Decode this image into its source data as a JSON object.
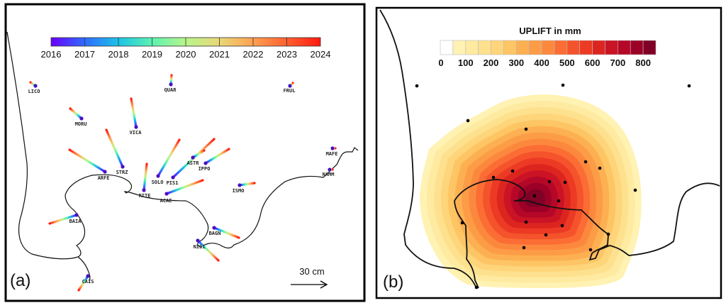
{
  "panel_a": {
    "label": "(a)",
    "colorbar": {
      "ticks": [
        "2016",
        "2017",
        "2018",
        "2019",
        "2020",
        "2021",
        "2022",
        "2023",
        "2024"
      ],
      "colors": [
        "#6a00ff",
        "#2f6bff",
        "#1cc3e6",
        "#5cf2b0",
        "#b8f58a",
        "#e8d878",
        "#ffa050",
        "#ff6030",
        "#ff1a10"
      ]
    },
    "stations": [
      "LICO",
      "QUAR",
      "FRUL",
      "MORU",
      "VICA",
      "STRZ",
      "ARFE",
      "SOLO",
      "PIS1",
      "ASTR",
      "IPPO",
      "RITE",
      "ACAE",
      "ISMO",
      "MAFE",
      "NAMM",
      "BAIA",
      "BAGN",
      "NISI",
      "CAIS"
    ],
    "scale_label": "30 cm"
  },
  "panel_b": {
    "label": "(b)",
    "colorbar": {
      "title": "UPLIFT in mm",
      "ticks": [
        "0",
        "100",
        "200",
        "300",
        "400",
        "500",
        "600",
        "700",
        "800"
      ],
      "colors": [
        "#ffffff",
        "#fff2b2",
        "#feeaa0",
        "#fee18e",
        "#fed57a",
        "#fec565",
        "#fdb052",
        "#fd9c46",
        "#fc883e",
        "#fb6d34",
        "#f5532b",
        "#ec3a24",
        "#dd2520",
        "#ca1325",
        "#b50727",
        "#9c0027",
        "#800026"
      ]
    }
  }
}
